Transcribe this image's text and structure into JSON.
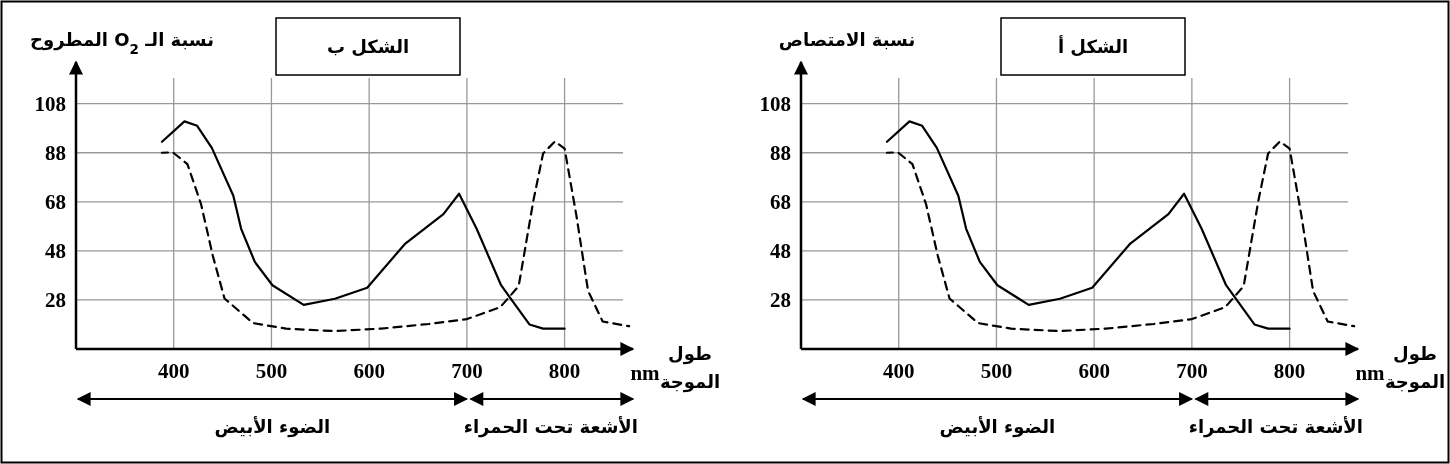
{
  "chart_data": [
    {
      "type": "line",
      "title": "الشكل أ",
      "ylabel": "نسبة الامتصاص",
      "xlabel": "طول الموجة",
      "annotations": [
        "nm",
        "الضوء الأبيض",
        "الأشعة تحت الحمراء"
      ],
      "xlim": [
        300,
        870
      ],
      "ylim": [
        8,
        125
      ],
      "xticks": [
        400,
        500,
        600,
        700,
        800
      ],
      "yticks": [
        28,
        48,
        68,
        88,
        108
      ],
      "grid": true,
      "marker": "none",
      "series": [
        {
          "color": "#000000",
          "line_style": "solid",
          "x": [
            388,
            411,
            424,
            439,
            461,
            469,
            483,
            501,
            533,
            565,
            598,
            637,
            676,
            692,
            710,
            735,
            764,
            778,
            800
          ],
          "values": [
            92.5,
            100.8,
            99,
            90,
            70.5,
            57,
            43.5,
            34,
            26,
            28.5,
            33,
            51,
            63,
            71.3,
            57,
            34,
            18,
            16.3,
            16.3
          ]
        },
        {
          "color": "#000000",
          "line_style": "dashed",
          "x": [
            388,
            399,
            414,
            428,
            440,
            452,
            481,
            515,
            564,
            612,
            661,
            700,
            734,
            753,
            768,
            778,
            790,
            800,
            812,
            824,
            839,
            866
          ],
          "values": [
            88,
            88.2,
            83.4,
            67,
            46,
            28.6,
            18.6,
            16.3,
            15.3,
            16.3,
            18.2,
            20.2,
            25,
            33.6,
            68.4,
            87.7,
            92.6,
            89.7,
            62.6,
            31.7,
            19.2,
            17.3
          ]
        }
      ]
    },
    {
      "type": "line",
      "title": "الشكل ب",
      "ylabel": "نسبة الـ O$_{2}$ المطروح",
      "xlabel": "طول الموجة",
      "annotations": [
        "nm",
        "الضوء الأبيض",
        "الأشعة تحت الحمراء"
      ],
      "xlim": [
        300,
        870
      ],
      "ylim": [
        8,
        125
      ],
      "xticks": [
        400,
        500,
        600,
        700,
        800
      ],
      "yticks": [
        28,
        48,
        68,
        88,
        108
      ],
      "grid": true,
      "marker": "none",
      "series": [
        {
          "color": "#000000",
          "line_style": "solid",
          "x": [
            388,
            411,
            424,
            439,
            461,
            469,
            483,
            501,
            533,
            565,
            598,
            637,
            676,
            692,
            710,
            735,
            764,
            778,
            800
          ],
          "values": [
            92.5,
            100.8,
            99,
            90,
            70.5,
            57,
            43.5,
            34,
            26,
            28.5,
            33,
            51,
            63,
            71.3,
            57,
            34,
            18,
            16.3,
            16.3
          ]
        },
        {
          "color": "#000000",
          "line_style": "dashed",
          "x": [
            388,
            399,
            414,
            428,
            440,
            452,
            481,
            515,
            564,
            612,
            661,
            700,
            734,
            753,
            768,
            778,
            790,
            800,
            812,
            824,
            839,
            866
          ],
          "values": [
            88,
            88.2,
            83.4,
            67,
            46,
            28.6,
            18.6,
            16.3,
            15.3,
            16.3,
            18.2,
            20.2,
            25,
            33.6,
            68.4,
            87.7,
            92.6,
            89.7,
            62.6,
            31.7,
            19.2,
            17.3
          ]
        }
      ]
    }
  ]
}
